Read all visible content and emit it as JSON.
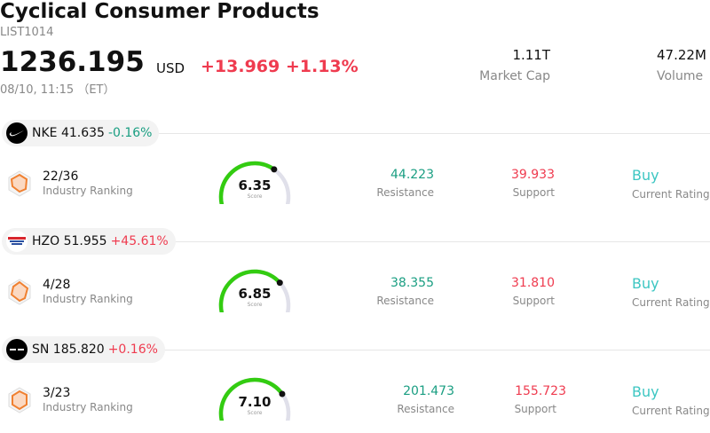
{
  "header": {
    "title": "Cyclical Consumer Products",
    "code": "LIST1014",
    "price": "1236.195",
    "currency": "USD",
    "change": "+13.969 +1.13%",
    "time": "08/10, 11:15 （ET）",
    "market_cap_value": "1.11T",
    "market_cap_label": "Market Cap",
    "volume_value": "47.22M",
    "volume_label": "Volume"
  },
  "stocks": [
    {
      "ticker": "NKE 41.635",
      "change": "-0.16%",
      "rank": "22/36",
      "rank_label": "Industry Ranking",
      "score": "6.35",
      "score_level": 0.635,
      "score_label": "Score",
      "resistance": "44.223",
      "resistance_label": "Resistance",
      "support": "39.933",
      "support_label": "Support",
      "rating": "Buy",
      "rating_label": "Current Rating"
    },
    {
      "ticker": "HZO 51.955",
      "change": "+45.61%",
      "rank": "4/28",
      "rank_label": "Industry Ranking",
      "score": "6.85",
      "score_level": 0.685,
      "score_label": "Score",
      "resistance": "38.355",
      "resistance_label": "Resistance",
      "support": "31.810",
      "support_label": "Support",
      "rating": "Buy",
      "rating_label": "Current Rating"
    },
    {
      "ticker": "SN 185.820",
      "change": "+0.16%",
      "rank": "3/23",
      "rank_label": "Industry Ranking",
      "score": "7.10",
      "score_level": 0.71,
      "score_label": "Score",
      "resistance": "201.473",
      "resistance_label": "Resistance",
      "support": "155.723",
      "support_label": "Support",
      "rating": "Buy",
      "rating_label": "Current Rating"
    }
  ],
  "colors": {
    "up": "#ef3b4f",
    "down": "#1a9e82",
    "gauge": "#33cc11",
    "rating": "#3cc6c2"
  },
  "icons": [
    "nike-logo-icon",
    "marinemax-logo-icon",
    "sharkninja-logo-icon",
    "ranking-radar-icon"
  ]
}
